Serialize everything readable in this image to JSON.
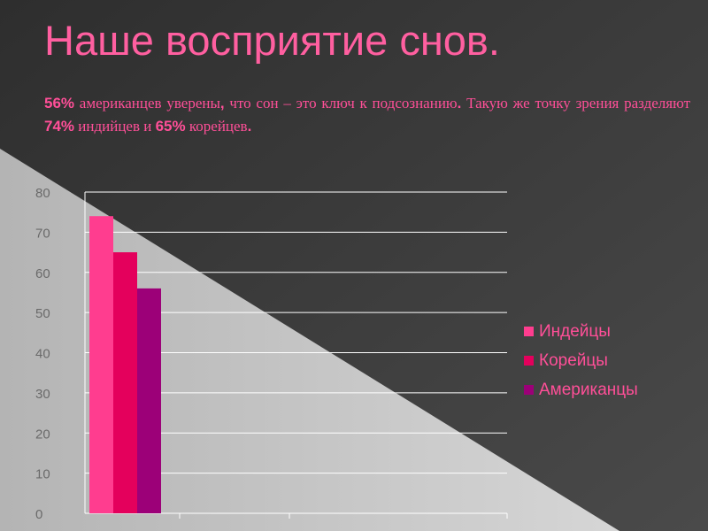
{
  "slide": {
    "title": "Наше восприятие снов.",
    "subtitle": {
      "p1": "56%",
      "t1": " американцев уверены",
      "c1": ",",
      "t2": " что сон – это ключ к подсознанию",
      "c2": ".",
      "t3": " Такую же точку зрения разделяют ",
      "p2": "74%",
      "t4": " индийцев и ",
      "p3": "65%",
      "t5": " корейцев",
      "c3": "."
    }
  },
  "colors": {
    "text": "#ff4f98",
    "bg_dark": "#3a3a3a",
    "bg_light": "#c8c8c8",
    "axis": "#ffffff",
    "tick_label": "#6a6a6a"
  },
  "chart_data": {
    "type": "bar",
    "categories": [
      ""
    ],
    "series": [
      {
        "name": "Индейцы",
        "values": [
          74
        ],
        "color": "#ff3d8f"
      },
      {
        "name": "Корейцы",
        "values": [
          65
        ],
        "color": "#e4005c"
      },
      {
        "name": "Американцы",
        "values": [
          56
        ],
        "color": "#9c0078"
      }
    ],
    "ylim": [
      0,
      80
    ],
    "yticks": [
      "0",
      "10",
      "20",
      "30",
      "40",
      "50",
      "60",
      "70",
      "80"
    ],
    "xlabel": "",
    "ylabel": "",
    "grid": true,
    "legend": "right"
  }
}
